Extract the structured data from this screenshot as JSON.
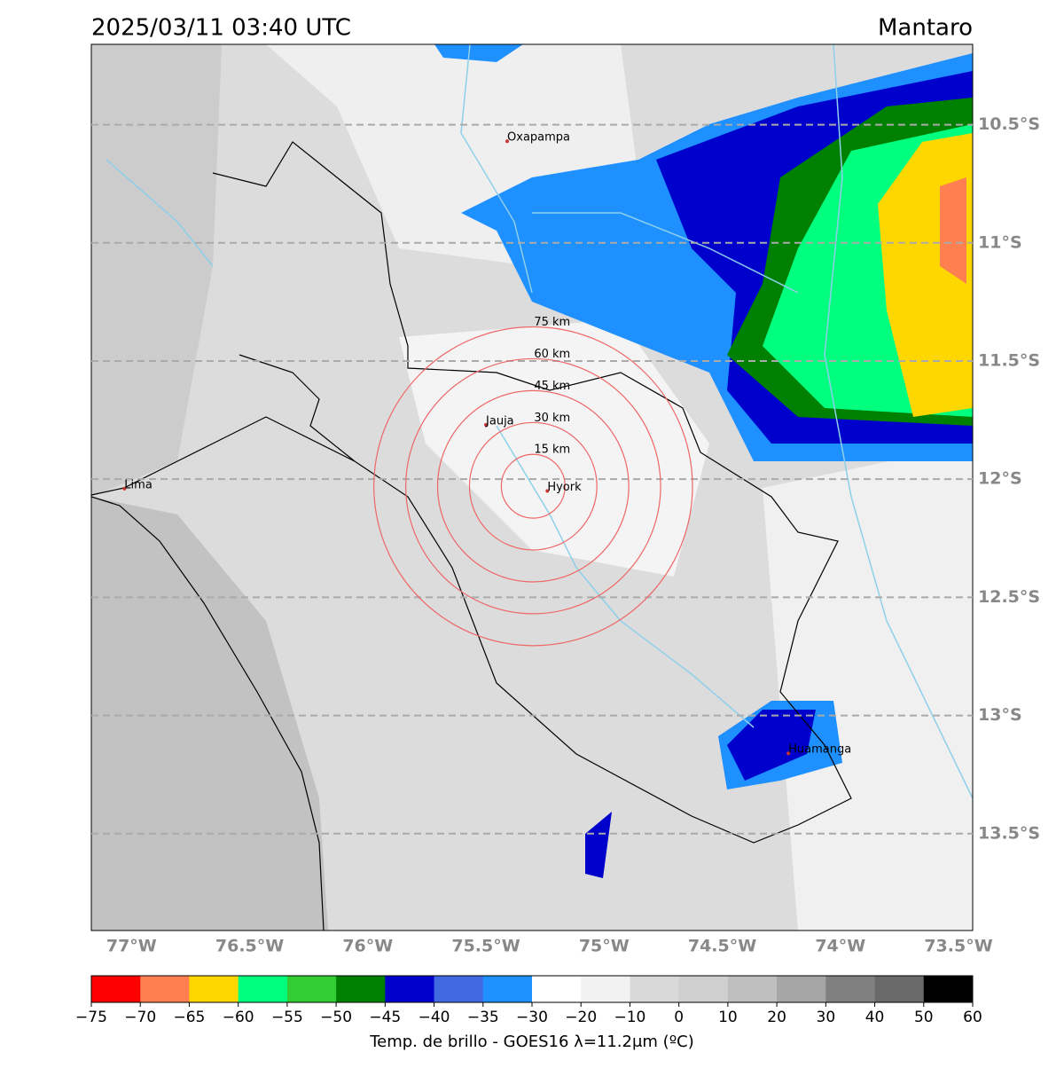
{
  "title_left": "2025/03/11 03:40 UTC",
  "title_right": "Mantaro",
  "map": {
    "lonlim": [
      -77.17,
      -73.44
    ],
    "latlim": [
      -13.91,
      -10.16
    ],
    "grid": "lat",
    "grid_color": "#aaaaaa",
    "lonticks": [
      {
        "value": -77,
        "label": "77°W"
      },
      {
        "value": -76.5,
        "label": "76.5°W"
      },
      {
        "value": -76,
        "label": "76°W"
      },
      {
        "value": -75.5,
        "label": "75.5°W"
      },
      {
        "value": -75,
        "label": "75°W"
      },
      {
        "value": -74.5,
        "label": "74.5°W"
      },
      {
        "value": -74,
        "label": "74°W"
      },
      {
        "value": -73.5,
        "label": "73.5°W"
      }
    ],
    "latticks": [
      {
        "value": -10.5,
        "label": "10.5°S"
      },
      {
        "value": -11,
        "label": "11°S"
      },
      {
        "value": -11.5,
        "label": "11.5°S"
      },
      {
        "value": -12,
        "label": "12°S"
      },
      {
        "value": -12.5,
        "label": "12.5°S"
      },
      {
        "value": -13,
        "label": "13°S"
      },
      {
        "value": -13.5,
        "label": "13.5°S"
      }
    ],
    "places": [
      {
        "name": "Oxapampa",
        "lon": -75.41,
        "lat": -10.57
      },
      {
        "name": "Jauja",
        "lon": -75.5,
        "lat": -11.77
      },
      {
        "name": "Lima",
        "lon": -77.03,
        "lat": -12.04
      },
      {
        "name": "Hyork",
        "lon": -75.24,
        "lat": -12.05
      },
      {
        "name": "Huamanga",
        "lon": -74.22,
        "lat": -13.16
      }
    ],
    "rings": {
      "lon": -75.3,
      "lat": -12.03,
      "color": "#ee6666",
      "radii": [
        {
          "value": 15,
          "label": "15 km"
        },
        {
          "value": 30,
          "label": "30 km"
        },
        {
          "value": 45,
          "label": "45 km"
        },
        {
          "value": 60,
          "label": "60 km"
        },
        {
          "value": 75,
          "label": "75 km"
        }
      ]
    }
  },
  "colorbar": {
    "label": "Temp. de brillo - GOES16 λ=11.2μm (ºC)",
    "ticks": [
      {
        "value": -75,
        "label": "−75"
      },
      {
        "value": -70,
        "label": "−70"
      },
      {
        "value": -65,
        "label": "−65"
      },
      {
        "value": -60,
        "label": "−60"
      },
      {
        "value": -55,
        "label": "−55"
      },
      {
        "value": -50,
        "label": "−50"
      },
      {
        "value": -45,
        "label": "−45"
      },
      {
        "value": -40,
        "label": "−40"
      },
      {
        "value": -35,
        "label": "−35"
      },
      {
        "value": -30,
        "label": "−30"
      },
      {
        "value": -20,
        "label": "−20"
      },
      {
        "value": -10,
        "label": "−10"
      },
      0,
      10,
      20,
      30,
      40,
      50,
      60
    ],
    "colors": [
      "#ff0000",
      "#ff7f50",
      "#ffd700",
      "#00ff7f",
      "#32cd32",
      "#008000",
      "#0000cd",
      "#4169e1",
      "#1e90ff",
      "#ffffff",
      "#f2f2f2",
      "#d9d9d9",
      "#cfcfcf",
      "#bfbfbf",
      "#a6a6a6",
      "#808080",
      "#696969",
      "#000000"
    ]
  }
}
